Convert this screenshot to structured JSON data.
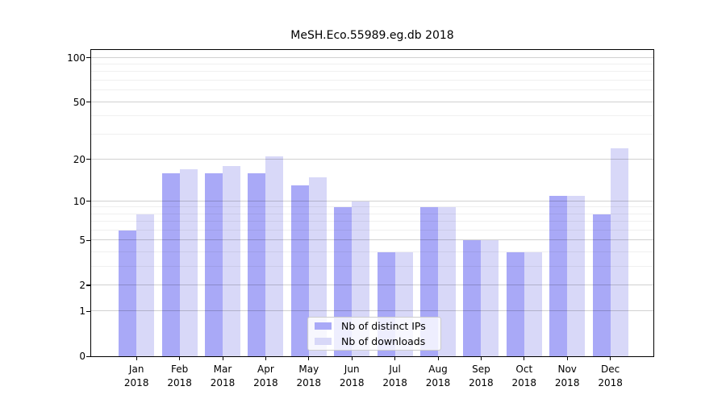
{
  "chart_data": {
    "type": "bar",
    "title": "MeSH.Eco.55989.eg.db 2018",
    "categories": [
      "Jan",
      "Feb",
      "Mar",
      "Apr",
      "May",
      "Jun",
      "Jul",
      "Aug",
      "Sep",
      "Oct",
      "Nov",
      "Dec"
    ],
    "category_year": "2018",
    "series": [
      {
        "name": "Nb of distinct IPs",
        "color": "#a9a9f7",
        "values": [
          6,
          16,
          16,
          16,
          13,
          9,
          4,
          9,
          5,
          4,
          11,
          8
        ]
      },
      {
        "name": "Nb of downloads",
        "color": "#d8d8f8",
        "values": [
          8,
          17,
          18,
          21,
          15,
          10,
          4,
          9,
          5,
          4,
          11,
          24
        ]
      }
    ],
    "y_axis": {
      "scale": "log1p",
      "ticks": [
        0,
        1,
        2,
        5,
        10,
        20,
        50,
        100
      ],
      "minor_ticks": [
        3,
        4,
        6,
        7,
        8,
        9,
        30,
        40,
        60,
        70,
        80,
        90
      ],
      "ylim": [
        0,
        113
      ]
    },
    "x_axis": {
      "label_line2": "2018"
    },
    "grid": true,
    "legend_position": "inside-bottom-center"
  }
}
